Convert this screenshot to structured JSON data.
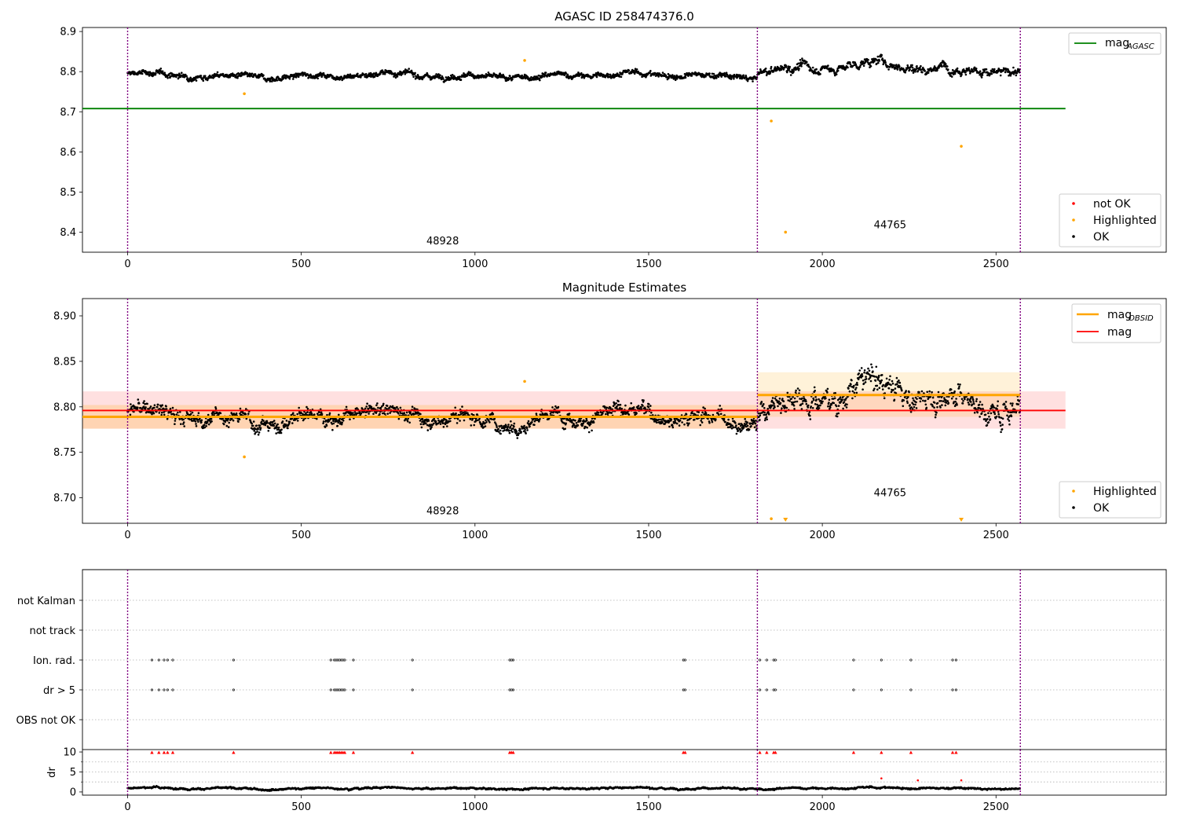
{
  "chart_data": [
    {
      "type": "scatter",
      "title": "AGASC ID 258474376.0",
      "xlim": [
        -130,
        2990
      ],
      "ylim": [
        8.35,
        8.91
      ],
      "xticks": [
        0,
        500,
        1000,
        1500,
        2000,
        2500
      ],
      "yticks": [
        8.4,
        8.5,
        8.6,
        8.7,
        8.8,
        8.9
      ],
      "ytick_labels": [
        "8.4",
        "8.5",
        "8.6",
        "8.7",
        "8.8",
        "8.9"
      ],
      "obsid_boundaries": [
        0,
        1813,
        2570
      ],
      "obsid_labels": [
        {
          "text": "48928",
          "x": 907,
          "y": 8.37
        },
        {
          "text": "44765",
          "x": 2195,
          "y": 8.41
        }
      ],
      "series": [
        {
          "name": "OK",
          "color": "#000000",
          "segments": [
            {
              "x0": 0,
              "x1": 1813,
              "mean": 8.79,
              "amp": 0.012,
              "noise": 0.008
            },
            {
              "x0": 1813,
              "x1": 2570,
              "mean": 8.81,
              "amp": 0.025,
              "noise": 0.01
            }
          ]
        },
        {
          "name": "Highlighted",
          "color": "#ffa500",
          "points": [
            [
              336,
              8.745
            ],
            [
              1143,
              8.828
            ],
            [
              1853,
              8.677
            ],
            [
              1894,
              8.4
            ],
            [
              2400,
              8.614
            ]
          ]
        },
        {
          "name": "not OK",
          "color": "#ff0000",
          "points": []
        }
      ],
      "hlines": [
        {
          "name": "mag_AGASC",
          "y": 8.708,
          "x0": -130,
          "x1": 2700,
          "color": "#008000"
        }
      ],
      "legend_lines": [
        {
          "label": "mag",
          "sub": "AGASC",
          "color": "#008000"
        }
      ],
      "legend_markers": [
        {
          "label": "not OK",
          "color": "#ff0000"
        },
        {
          "label": "Highlighted",
          "color": "#ffa500"
        },
        {
          "label": "OK",
          "color": "#000000"
        }
      ],
      "legend_placement": [
        "top-right",
        "bottom-right"
      ]
    },
    {
      "type": "scatter",
      "title": "Magnitude Estimates",
      "xlim": [
        -130,
        2990
      ],
      "ylim": [
        8.672,
        8.919
      ],
      "xticks": [
        0,
        500,
        1000,
        1500,
        2000,
        2500
      ],
      "yticks": [
        8.7,
        8.75,
        8.8,
        8.85,
        8.9
      ],
      "ytick_labels": [
        "8.70",
        "8.75",
        "8.80",
        "8.85",
        "8.90"
      ],
      "obsid_boundaries": [
        0,
        1813,
        2570
      ],
      "obsid_labels": [
        {
          "text": "48928",
          "x": 907,
          "y": 8.682
        },
        {
          "text": "44765",
          "x": 2195,
          "y": 8.702
        }
      ],
      "series": [
        {
          "name": "OK",
          "color": "#000000",
          "segments": [
            {
              "x0": 0,
              "x1": 1813,
              "mean": 8.789,
              "amp": 0.015,
              "noise": 0.009
            },
            {
              "x0": 1813,
              "x1": 2570,
              "mean": 8.812,
              "amp": 0.03,
              "noise": 0.012
            }
          ]
        },
        {
          "name": "Highlighted",
          "color": "#ffa500",
          "points": [
            [
              336,
              8.745
            ],
            [
              1143,
              8.828
            ],
            [
              1853,
              8.677
            ]
          ]
        }
      ],
      "highlighted_below_range": [
        1894,
        2400
      ],
      "hlines": [
        {
          "name": "mag_OBSID",
          "y": 8.789,
          "x0": -130,
          "x1": 1813,
          "color": "#ffa500"
        },
        {
          "name": "mag_OBSID",
          "y": 8.813,
          "x0": 1813,
          "x1": 2570,
          "color": "#ffa500"
        },
        {
          "name": "mag",
          "y": 8.796,
          "x0": -130,
          "x1": 2700,
          "color": "#ff0000"
        }
      ],
      "bands": [
        {
          "y0": 8.776,
          "y1": 8.817,
          "x0": -130,
          "x1": 2700,
          "color": "#ff0000",
          "opacity": 0.12
        },
        {
          "y0": 8.776,
          "y1": 8.802,
          "x0": -130,
          "x1": 1813,
          "color": "#ffa500",
          "opacity": 0.2
        },
        {
          "y0": 8.789,
          "y1": 8.838,
          "x0": 1813,
          "x1": 2570,
          "color": "#ffa500",
          "opacity": 0.15
        }
      ],
      "legend_lines": [
        {
          "label": "mag",
          "sub": "OBSID",
          "color": "#ffa500"
        },
        {
          "label": "mag",
          "sub": "",
          "color": "#ff0000"
        }
      ],
      "legend_markers": [
        {
          "label": "Highlighted",
          "color": "#ffa500"
        },
        {
          "label": "OK",
          "color": "#000000"
        }
      ],
      "legend_placement": [
        "top-right",
        "bottom-right"
      ]
    },
    {
      "type": "scatter",
      "title": "",
      "xlim": [
        -130,
        2990
      ],
      "categories": [
        "not Kalman",
        "not track",
        "Ion. rad.",
        "dr > 5",
        "OBS not OK"
      ],
      "obsid_boundaries": [
        0,
        1813,
        2570
      ],
      "flag_x": {
        "not Kalman": [],
        "not track": [],
        "Ion. rad.": [
          70,
          90,
          105,
          115,
          130,
          305,
          585,
          595,
          600,
          605,
          610,
          615,
          620,
          625,
          650,
          820,
          1100,
          1105,
          1110,
          1600,
          1605,
          1820,
          1840,
          1860,
          1865,
          2090,
          2170,
          2255,
          2375,
          2385
        ],
        "dr > 5": [
          70,
          90,
          105,
          115,
          130,
          305,
          585,
          595,
          600,
          605,
          610,
          615,
          620,
          625,
          650,
          820,
          1100,
          1105,
          1110,
          1600,
          1605,
          1820,
          1840,
          1860,
          1865,
          2090,
          2170,
          2255,
          2375,
          2385
        ],
        "OBS not OK": []
      }
    },
    {
      "type": "scatter",
      "title": "",
      "xlim": [
        -130,
        2990
      ],
      "ylim": [
        -0.8,
        10.6
      ],
      "xticks": [
        0,
        500,
        1000,
        1500,
        2000,
        2500
      ],
      "yticks": [
        0,
        5,
        10
      ],
      "ytick_labels": [
        "0",
        "5",
        "10"
      ],
      "ylabel": "dr",
      "obsid_boundaries": [
        0,
        1813,
        2570
      ],
      "series": [
        {
          "name": "OK",
          "color": "#000000",
          "segments": [
            {
              "x0": 0,
              "x1": 2570,
              "mean": 0.9,
              "amp": 0.4,
              "noise": 0.25
            }
          ]
        },
        {
          "name": "not OK",
          "color": "#ff0000",
          "points": [
            [
              2170,
              3.4
            ],
            [
              2275,
              2.9
            ],
            [
              2400,
              2.9
            ]
          ]
        },
        {
          "name": "dr clipped",
          "color": "#ff0000",
          "clipped_y": 9.9,
          "x": [
            70,
            90,
            105,
            115,
            130,
            305,
            585,
            595,
            600,
            605,
            610,
            615,
            620,
            625,
            650,
            820,
            1100,
            1105,
            1110,
            1600,
            1605,
            1820,
            1840,
            1860,
            1865,
            2090,
            2170,
            2255,
            2375,
            2385
          ]
        }
      ]
    }
  ]
}
